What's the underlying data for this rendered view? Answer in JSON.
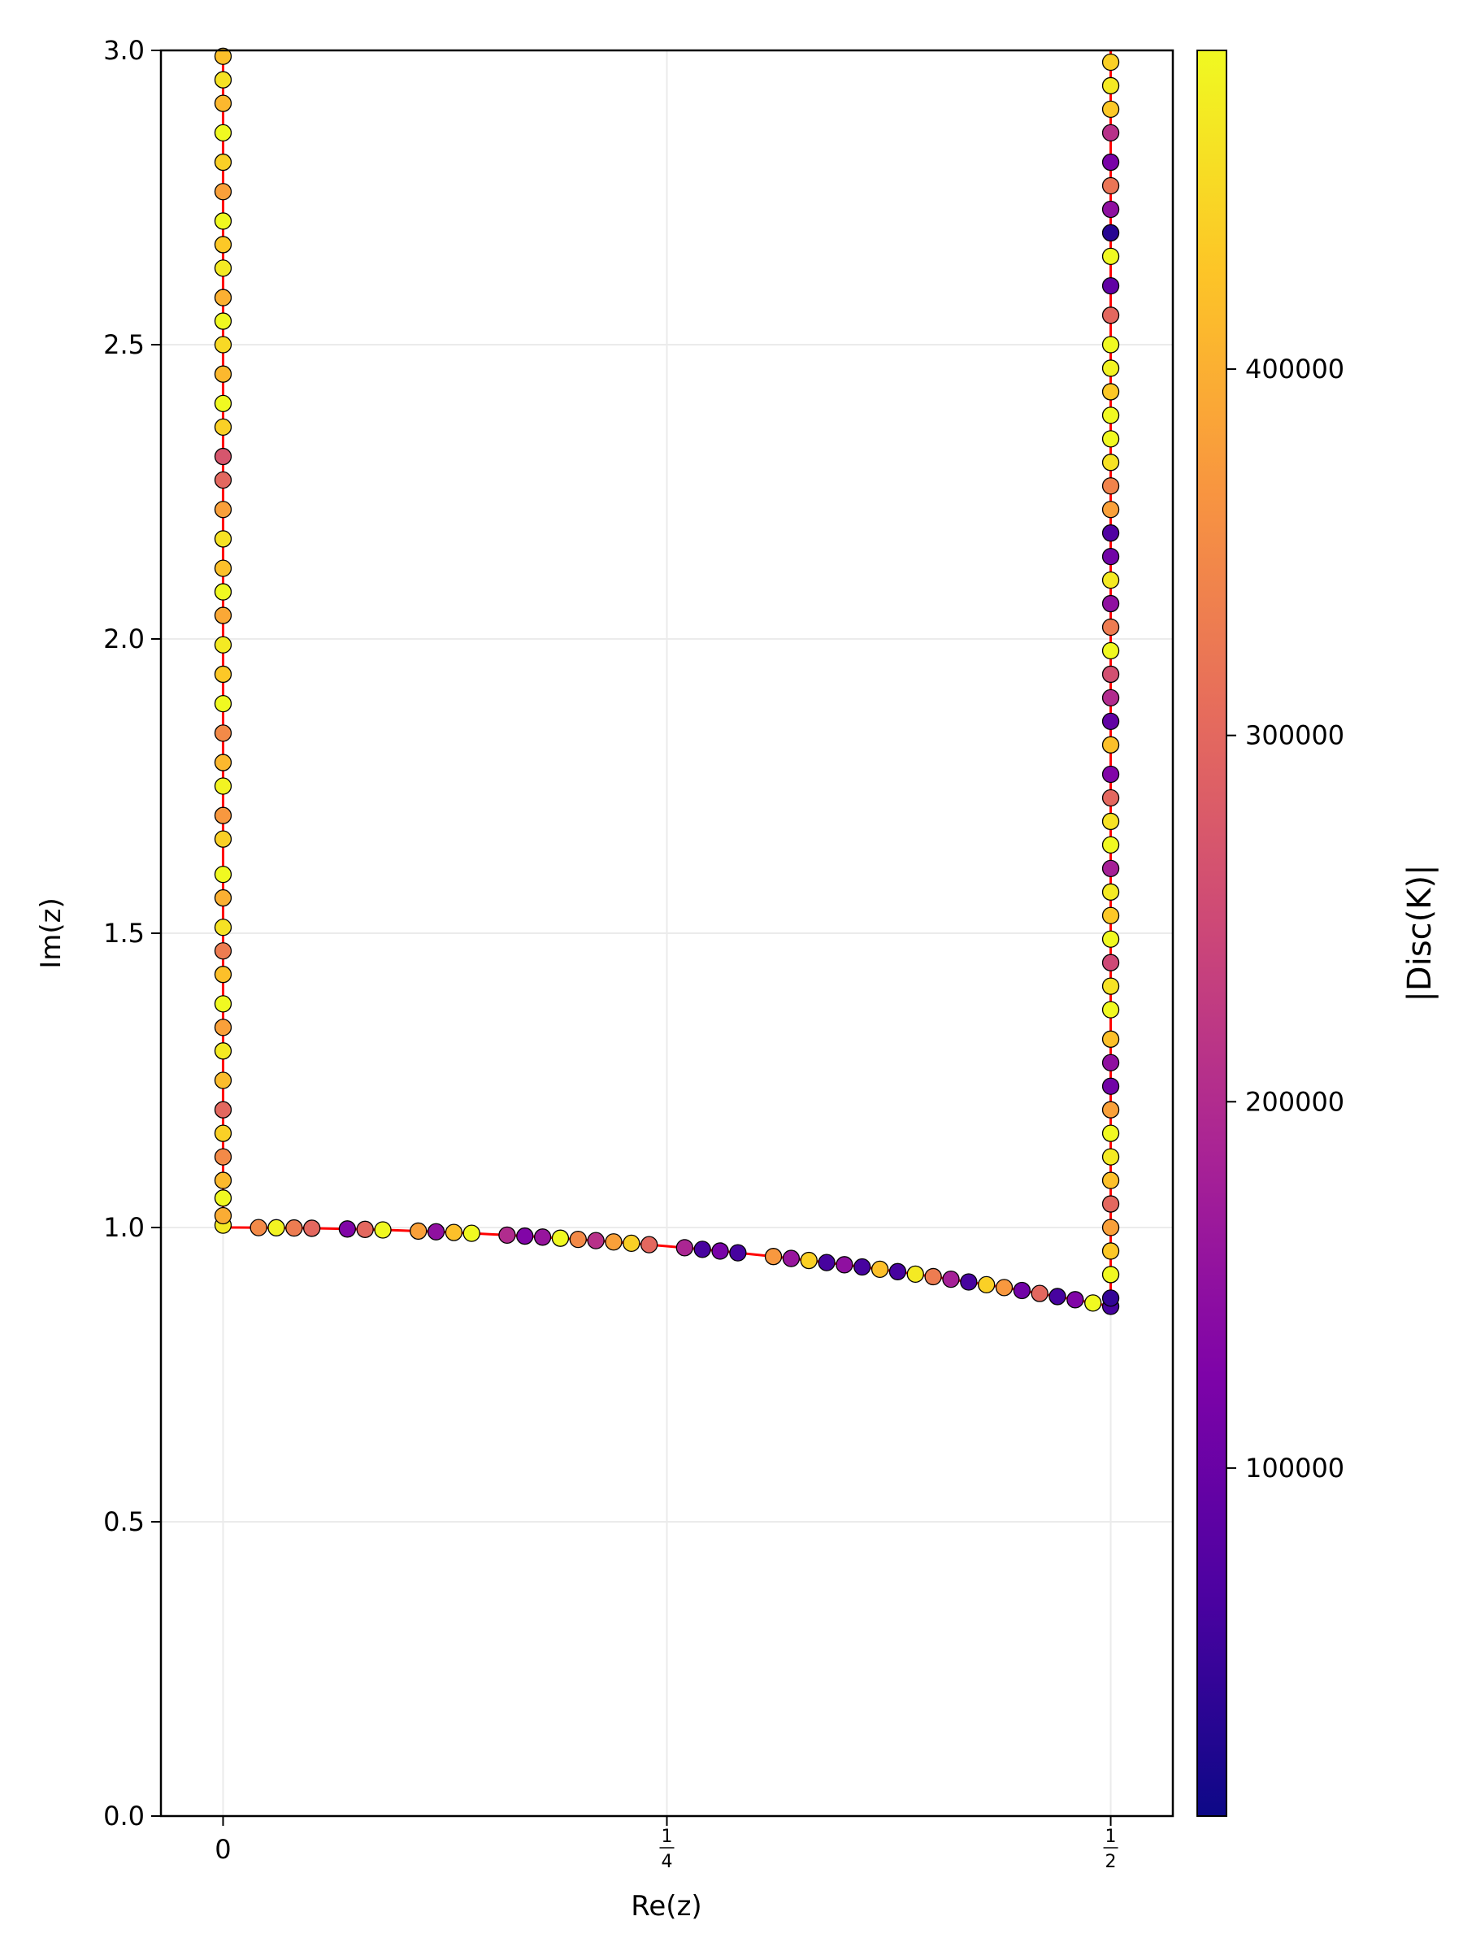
{
  "chart_data": {
    "type": "scatter",
    "xlabel": "Re(z)",
    "ylabel": "Im(z)",
    "xlim": [
      -0.035,
      0.535
    ],
    "ylim": [
      0,
      3
    ],
    "x_ticks": [
      {
        "value": 0,
        "label": "0"
      },
      {
        "value": 0.25,
        "label": "1/4"
      },
      {
        "value": 0.5,
        "label": "1/2"
      }
    ],
    "y_ticks": [
      {
        "value": 0.0,
        "label": "0.0"
      },
      {
        "value": 0.5,
        "label": "0.5"
      },
      {
        "value": 1.0,
        "label": "1.0"
      },
      {
        "value": 1.5,
        "label": "1.5"
      },
      {
        "value": 2.0,
        "label": "2.0"
      },
      {
        "value": 2.5,
        "label": "2.5"
      },
      {
        "value": 3.0,
        "label": "3.0"
      }
    ],
    "grid": true,
    "boundary_curve": {
      "color": "#ff0000",
      "description": "left edge Re(z)=0, unit circle arc |z|=1, right edge Re(z)=1/2"
    },
    "colorbar": {
      "label": "|Disc(K)|",
      "colormap": "plasma",
      "range": [
        5000,
        487000
      ],
      "ticks": [
        {
          "value": 100000,
          "label": "100000"
        },
        {
          "value": 200000,
          "label": "200000"
        },
        {
          "value": 300000,
          "label": "300000"
        },
        {
          "value": 400000,
          "label": "400000"
        }
      ]
    },
    "series": [
      {
        "points": [
          [
            0.0,
            1.004,
            468000
          ],
          [
            0.0,
            1.02,
            395000
          ],
          [
            0.0,
            1.05,
            487000
          ],
          [
            0.0,
            1.08,
            412000
          ],
          [
            0.0,
            1.12,
            350000
          ],
          [
            0.0,
            1.16,
            440000
          ],
          [
            0.0,
            1.2,
            300000
          ],
          [
            0.0,
            1.25,
            415000
          ],
          [
            0.0,
            1.3,
            470000
          ],
          [
            0.0,
            1.34,
            380000
          ],
          [
            0.0,
            1.38,
            487000
          ],
          [
            0.0,
            1.43,
            420000
          ],
          [
            0.0,
            1.47,
            330000
          ],
          [
            0.0,
            1.51,
            460000
          ],
          [
            0.0,
            1.56,
            400000
          ],
          [
            0.0,
            1.6,
            487000
          ],
          [
            0.0,
            1.66,
            440000
          ],
          [
            0.0,
            1.7,
            370000
          ],
          [
            0.0,
            1.75,
            480000
          ],
          [
            0.0,
            1.79,
            410000
          ],
          [
            0.0,
            1.84,
            350000
          ],
          [
            0.0,
            1.89,
            487000
          ],
          [
            0.0,
            1.94,
            430000
          ],
          [
            0.0,
            1.99,
            470000
          ],
          [
            0.0,
            2.04,
            390000
          ],
          [
            0.0,
            2.08,
            487000
          ],
          [
            0.0,
            2.12,
            420000
          ],
          [
            0.0,
            2.17,
            460000
          ],
          [
            0.0,
            2.22,
            380000
          ],
          [
            0.0,
            2.27,
            300000
          ],
          [
            0.0,
            2.31,
            270000
          ],
          [
            0.0,
            2.36,
            440000
          ],
          [
            0.0,
            2.4,
            487000
          ],
          [
            0.0,
            2.45,
            410000
          ],
          [
            0.0,
            2.5,
            450000
          ],
          [
            0.0,
            2.54,
            487000
          ],
          [
            0.0,
            2.58,
            400000
          ],
          [
            0.0,
            2.63,
            470000
          ],
          [
            0.0,
            2.67,
            430000
          ],
          [
            0.0,
            2.71,
            487000
          ],
          [
            0.0,
            2.76,
            380000
          ],
          [
            0.0,
            2.81,
            440000
          ],
          [
            0.0,
            2.86,
            487000
          ],
          [
            0.0,
            2.91,
            410000
          ],
          [
            0.0,
            2.95,
            460000
          ],
          [
            0.0,
            2.99,
            420000
          ],
          [
            0.5,
            0.866,
            60000
          ],
          [
            0.5,
            0.88,
            40000
          ],
          [
            0.5,
            0.92,
            487000
          ],
          [
            0.5,
            0.96,
            430000
          ],
          [
            0.5,
            1.0,
            380000
          ],
          [
            0.5,
            1.04,
            300000
          ],
          [
            0.5,
            1.08,
            420000
          ],
          [
            0.5,
            1.12,
            470000
          ],
          [
            0.5,
            1.16,
            487000
          ],
          [
            0.5,
            1.2,
            380000
          ],
          [
            0.5,
            1.24,
            110000
          ],
          [
            0.5,
            1.28,
            150000
          ],
          [
            0.5,
            1.32,
            420000
          ],
          [
            0.5,
            1.37,
            487000
          ],
          [
            0.5,
            1.41,
            460000
          ],
          [
            0.5,
            1.45,
            250000
          ],
          [
            0.5,
            1.49,
            487000
          ],
          [
            0.5,
            1.53,
            430000
          ],
          [
            0.5,
            1.57,
            470000
          ],
          [
            0.5,
            1.61,
            180000
          ],
          [
            0.5,
            1.65,
            487000
          ],
          [
            0.5,
            1.69,
            460000
          ],
          [
            0.5,
            1.73,
            300000
          ],
          [
            0.5,
            1.77,
            130000
          ],
          [
            0.5,
            1.82,
            420000
          ],
          [
            0.5,
            1.86,
            90000
          ],
          [
            0.5,
            1.9,
            200000
          ],
          [
            0.5,
            1.94,
            260000
          ],
          [
            0.5,
            1.98,
            487000
          ],
          [
            0.5,
            2.02,
            330000
          ],
          [
            0.5,
            2.06,
            150000
          ],
          [
            0.5,
            2.1,
            470000
          ],
          [
            0.5,
            2.14,
            110000
          ],
          [
            0.5,
            2.18,
            70000
          ],
          [
            0.5,
            2.22,
            380000
          ],
          [
            0.5,
            2.26,
            340000
          ],
          [
            0.5,
            2.3,
            460000
          ],
          [
            0.5,
            2.34,
            487000
          ],
          [
            0.5,
            2.38,
            487000
          ],
          [
            0.5,
            2.42,
            430000
          ],
          [
            0.5,
            2.46,
            480000
          ],
          [
            0.5,
            2.5,
            487000
          ],
          [
            0.5,
            2.55,
            300000
          ],
          [
            0.5,
            2.6,
            90000
          ],
          [
            0.5,
            2.65,
            487000
          ],
          [
            0.5,
            2.69,
            30000
          ],
          [
            0.5,
            2.73,
            150000
          ],
          [
            0.5,
            2.77,
            320000
          ],
          [
            0.5,
            2.81,
            120000
          ],
          [
            0.5,
            2.86,
            210000
          ],
          [
            0.5,
            2.9,
            430000
          ],
          [
            0.5,
            2.94,
            470000
          ],
          [
            0.5,
            2.98,
            440000
          ],
          [
            0.02,
            0.9998,
            350000
          ],
          [
            0.03,
            0.9996,
            480000
          ],
          [
            0.04,
            0.9992,
            330000
          ],
          [
            0.05,
            0.9987,
            300000
          ],
          [
            0.07,
            0.9975,
            130000
          ],
          [
            0.08,
            0.9968,
            300000
          ],
          [
            0.09,
            0.9959,
            487000
          ],
          [
            0.11,
            0.9939,
            380000
          ],
          [
            0.12,
            0.9928,
            150000
          ],
          [
            0.13,
            0.9915,
            420000
          ],
          [
            0.14,
            0.9902,
            487000
          ],
          [
            0.16,
            0.9871,
            200000
          ],
          [
            0.17,
            0.9854,
            130000
          ],
          [
            0.18,
            0.9837,
            160000
          ],
          [
            0.19,
            0.9818,
            487000
          ],
          [
            0.2,
            0.9798,
            350000
          ],
          [
            0.21,
            0.9777,
            210000
          ],
          [
            0.22,
            0.9755,
            380000
          ],
          [
            0.23,
            0.9732,
            440000
          ],
          [
            0.24,
            0.9708,
            300000
          ],
          [
            0.26,
            0.9656,
            190000
          ],
          [
            0.27,
            0.9629,
            60000
          ],
          [
            0.28,
            0.96,
            120000
          ],
          [
            0.29,
            0.957,
            60000
          ],
          [
            0.31,
            0.9507,
            370000
          ],
          [
            0.32,
            0.9474,
            160000
          ],
          [
            0.33,
            0.944,
            440000
          ],
          [
            0.34,
            0.9404,
            60000
          ],
          [
            0.35,
            0.9367,
            150000
          ],
          [
            0.36,
            0.933,
            60000
          ],
          [
            0.37,
            0.929,
            420000
          ],
          [
            0.38,
            0.925,
            60000
          ],
          [
            0.39,
            0.9208,
            470000
          ],
          [
            0.4,
            0.9165,
            330000
          ],
          [
            0.41,
            0.9121,
            180000
          ],
          [
            0.42,
            0.9075,
            60000
          ],
          [
            0.43,
            0.9028,
            440000
          ],
          [
            0.44,
            0.898,
            370000
          ],
          [
            0.45,
            0.893,
            110000
          ],
          [
            0.46,
            0.8879,
            300000
          ],
          [
            0.47,
            0.8827,
            60000
          ],
          [
            0.48,
            0.8773,
            130000
          ],
          [
            0.49,
            0.8717,
            487000
          ]
        ]
      }
    ]
  }
}
